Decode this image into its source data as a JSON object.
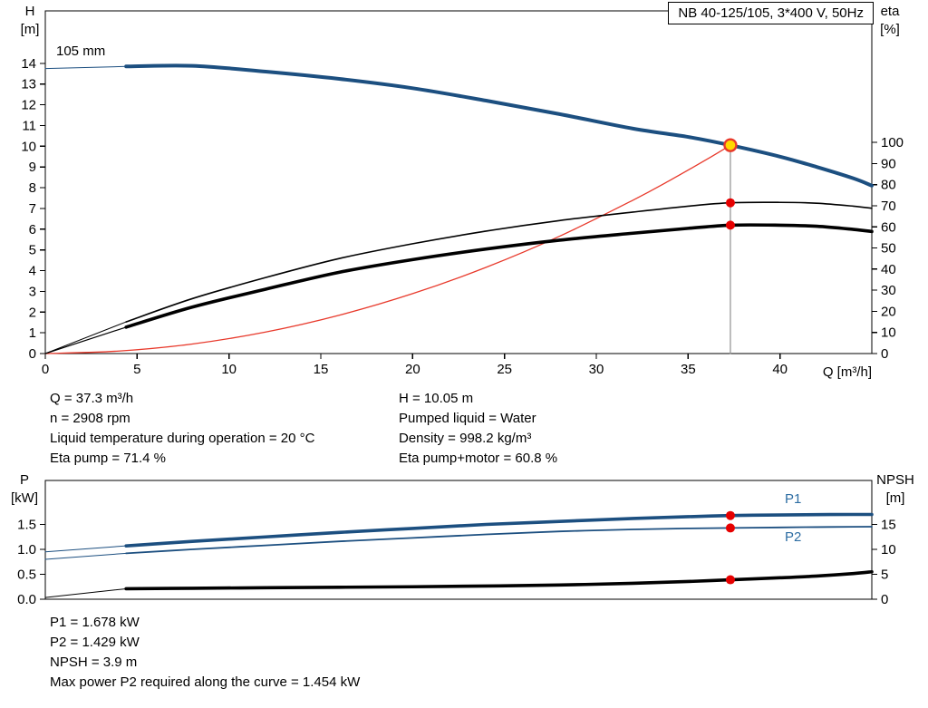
{
  "top_chart": {
    "title_box": "NB 40-125/105, 3*400 V, 50Hz",
    "impeller_label": "105 mm",
    "y_left_title": "H",
    "y_left_unit": "[m]",
    "y_right_title": "eta",
    "y_right_unit": "[%]",
    "x_axis_label": "Q [m³/h]"
  },
  "operating_info": {
    "left": [
      "Q = 37.3 m³/h",
      "n = 2908 rpm",
      "Liquid temperature during operation = 20 °C",
      "Eta pump = 71.4 %"
    ],
    "right": [
      "H = 10.05 m",
      "Pumped liquid = Water",
      "Density = 998.2 kg/m³",
      "Eta pump+motor = 60.8 %"
    ]
  },
  "bottom_chart": {
    "y_left_title": "P",
    "y_left_unit": "[kW]",
    "y_right_title": "NPSH",
    "y_right_unit": "[m]",
    "p1_label": "P1",
    "p2_label": "P2"
  },
  "power_info": [
    "P1 = 1.678 kW",
    "P2 = 1.429 kW",
    "NPSH = 3.9 m",
    "Max power P2 required along the curve = 1.454 kW"
  ],
  "colors": {
    "curve_blue": "#1c4f80",
    "label_blue": "#2d6da3",
    "marker_red": "#e60000",
    "system_red": "#e8392b",
    "duty_yellow": "#ffd800",
    "duty_line_gray": "#8f8f8f"
  },
  "chart_data": [
    {
      "type": "line",
      "title": "NB 40-125/105, 3*400 V, 50Hz",
      "xlabel": "Q [m³/h]",
      "ylabel_left": "H [m]",
      "ylabel_right": "eta [%]",
      "xlim": [
        0,
        45
      ],
      "ylim_left": [
        0,
        16.53
      ],
      "ylim_right": [
        0,
        162.3
      ],
      "grid": false,
      "duty_point": {
        "Q": 37.3,
        "H": 10.05,
        "eta_pump": 71.4,
        "eta_pump_motor": 60.8
      },
      "x_ticks": [
        [
          0,
          "0"
        ],
        [
          5,
          "5"
        ],
        [
          10,
          "10"
        ],
        [
          15,
          "15"
        ],
        [
          20,
          "20"
        ],
        [
          25,
          "25"
        ],
        [
          30,
          "30"
        ],
        [
          35,
          "35"
        ],
        [
          40,
          "40"
        ]
      ],
      "left_ticks": [
        [
          0,
          "0"
        ],
        [
          1,
          "1"
        ],
        [
          2,
          "2"
        ],
        [
          3,
          "3"
        ],
        [
          4,
          "4"
        ],
        [
          5,
          "5"
        ],
        [
          6,
          "6"
        ],
        [
          7,
          "7"
        ],
        [
          8,
          "8"
        ],
        [
          9,
          "9"
        ],
        [
          10,
          "10"
        ],
        [
          11,
          "11"
        ],
        [
          12,
          "12"
        ],
        [
          13,
          "13"
        ],
        [
          14,
          "14"
        ]
      ],
      "right_ticks": [
        [
          0,
          "0"
        ],
        [
          10,
          "10"
        ],
        [
          20,
          "20"
        ],
        [
          30,
          "30"
        ],
        [
          40,
          "40"
        ],
        [
          50,
          "50"
        ],
        [
          60,
          "60"
        ],
        [
          70,
          "70"
        ],
        [
          80,
          "80"
        ],
        [
          90,
          "90"
        ],
        [
          100,
          "100"
        ]
      ],
      "series": [
        {
          "name": "duty-vertical-line",
          "axis": "left",
          "color": "#8f8f8f",
          "width": 1.2,
          "points": [
            [
              37.3,
              0
            ],
            [
              37.3,
              10.05
            ]
          ]
        },
        {
          "name": "system-curve",
          "axis": "left",
          "color": "#e8392b",
          "width": 1.3,
          "points": [
            [
              0,
              0
            ],
            [
              4,
              0.12
            ],
            [
              8,
              0.46
            ],
            [
              12,
              1.04
            ],
            [
              16,
              1.85
            ],
            [
              20,
              2.89
            ],
            [
              24,
              4.16
            ],
            [
              28,
              5.66
            ],
            [
              32,
              7.4
            ],
            [
              34,
              8.35
            ],
            [
              36,
              9.36
            ],
            [
              37.3,
              10.05
            ]
          ]
        },
        {
          "name": "eta-pump-lead",
          "axis": "right",
          "color": "#000000",
          "width": 1,
          "points": [
            [
              0,
              0
            ],
            [
              4.4,
              15
            ]
          ]
        },
        {
          "name": "eta-pump-motor-lead",
          "axis": "right",
          "color": "#000000",
          "width": 1.2,
          "points": [
            [
              0,
              0
            ],
            [
              4.4,
              12.5
            ]
          ]
        },
        {
          "name": "eta-pump-curve",
          "axis": "right",
          "color": "#000000",
          "width": 1.6,
          "points": [
            [
              4.4,
              15
            ],
            [
              8,
              26
            ],
            [
              12,
              36
            ],
            [
              16,
              45
            ],
            [
              20,
              52
            ],
            [
              24,
              58
            ],
            [
              28,
              63
            ],
            [
              32,
              67
            ],
            [
              35,
              69.8
            ],
            [
              37.3,
              71.4
            ],
            [
              40,
              71.6
            ],
            [
              42,
              71.2
            ],
            [
              44,
              69.8
            ],
            [
              45,
              68.8
            ]
          ]
        },
        {
          "name": "eta-pump-motor-curve",
          "axis": "right",
          "color": "#000000",
          "width": 3.6,
          "points": [
            [
              4.4,
              12.5
            ],
            [
              8,
              22
            ],
            [
              12,
              30.5
            ],
            [
              16,
              38.5
            ],
            [
              20,
              44.5
            ],
            [
              24,
              49.5
            ],
            [
              28,
              53.7
            ],
            [
              32,
              57
            ],
            [
              35,
              59.3
            ],
            [
              37.3,
              60.8
            ],
            [
              40,
              60.8
            ],
            [
              42,
              60.3
            ],
            [
              44,
              58.8
            ],
            [
              45,
              57.8
            ]
          ]
        },
        {
          "name": "head-curve-lead",
          "axis": "left",
          "color": "#1c4f80",
          "width": 1,
          "points": [
            [
              0,
              13.75
            ],
            [
              4.4,
              13.85
            ]
          ]
        },
        {
          "name": "head-curve",
          "axis": "left",
          "color": "#1c4f80",
          "width": 4,
          "points": [
            [
              4.4,
              13.85
            ],
            [
              8,
              13.88
            ],
            [
              12,
              13.6
            ],
            [
              16,
              13.25
            ],
            [
              20,
              12.8
            ],
            [
              24,
              12.2
            ],
            [
              28,
              11.55
            ],
            [
              32,
              10.85
            ],
            [
              35,
              10.45
            ],
            [
              37.3,
              10.05
            ],
            [
              40,
              9.5
            ],
            [
              42,
              9.0
            ],
            [
              44,
              8.45
            ],
            [
              45,
              8.1
            ]
          ]
        }
      ],
      "markers": [
        {
          "name": "duty-point",
          "axis": "left",
          "x": 37.3,
          "y": 10.05,
          "r": 6.5,
          "fill": "#ffd800",
          "stroke": "#e8392b",
          "stroke_width": 2.4
        },
        {
          "name": "eta-pump-point",
          "axis": "right",
          "x": 37.3,
          "y": 71.4,
          "r": 5,
          "fill": "#e60000"
        },
        {
          "name": "eta-pump-motor-point",
          "axis": "right",
          "x": 37.3,
          "y": 60.8,
          "r": 5,
          "fill": "#e60000"
        }
      ]
    },
    {
      "type": "line",
      "title": "",
      "xlabel": "",
      "ylabel_left": "P [kW]",
      "ylabel_right": "NPSH [m]",
      "xlim": [
        0,
        45
      ],
      "ylim_left": [
        0,
        2.382
      ],
      "ylim_right": [
        0,
        23.82
      ],
      "grid": false,
      "x_ticks": [],
      "left_ticks": [
        [
          0,
          "0.0"
        ],
        [
          0.5,
          "0.5"
        ],
        [
          1,
          "1.0"
        ],
        [
          1.5,
          "1.5"
        ]
      ],
      "right_ticks": [
        [
          0,
          "0"
        ],
        [
          5,
          "5"
        ],
        [
          10,
          "10"
        ],
        [
          15,
          "15"
        ]
      ],
      "series": [
        {
          "name": "p2-curve-lead",
          "axis": "left",
          "color": "#1c4f80",
          "width": 1,
          "points": [
            [
              0,
              0.8
            ],
            [
              4.4,
              0.92
            ]
          ]
        },
        {
          "name": "p2-curve",
          "axis": "left",
          "color": "#1c4f80",
          "width": 1.8,
          "points": [
            [
              4.4,
              0.92
            ],
            [
              8,
              1.0
            ],
            [
              12,
              1.08
            ],
            [
              16,
              1.16
            ],
            [
              20,
              1.23
            ],
            [
              24,
              1.3
            ],
            [
              28,
              1.36
            ],
            [
              32,
              1.4
            ],
            [
              35,
              1.42
            ],
            [
              37.3,
              1.429
            ],
            [
              40,
              1.44
            ],
            [
              42,
              1.447
            ],
            [
              44,
              1.452
            ],
            [
              45,
              1.454
            ]
          ]
        },
        {
          "name": "p1-curve-lead",
          "axis": "left",
          "color": "#1c4f80",
          "width": 1,
          "points": [
            [
              0,
              0.95
            ],
            [
              4.4,
              1.07
            ]
          ]
        },
        {
          "name": "p1-curve",
          "axis": "left",
          "color": "#1c4f80",
          "width": 3.6,
          "points": [
            [
              4.4,
              1.07
            ],
            [
              8,
              1.16
            ],
            [
              12,
              1.25
            ],
            [
              16,
              1.34
            ],
            [
              20,
              1.42
            ],
            [
              24,
              1.5
            ],
            [
              28,
              1.56
            ],
            [
              32,
              1.62
            ],
            [
              35,
              1.655
            ],
            [
              37.3,
              1.678
            ],
            [
              40,
              1.69
            ],
            [
              42,
              1.697
            ],
            [
              44,
              1.7
            ],
            [
              45,
              1.7
            ]
          ]
        },
        {
          "name": "npsh-curve-lead",
          "axis": "right",
          "color": "#000000",
          "width": 1,
          "points": [
            [
              0,
              0.35
            ],
            [
              4.4,
              2.1
            ]
          ]
        },
        {
          "name": "npsh-curve",
          "axis": "right",
          "color": "#000000",
          "width": 3.6,
          "points": [
            [
              4.4,
              2.1
            ],
            [
              8,
              2.2
            ],
            [
              12,
              2.3
            ],
            [
              16,
              2.4
            ],
            [
              20,
              2.5
            ],
            [
              24,
              2.65
            ],
            [
              28,
              2.85
            ],
            [
              32,
              3.2
            ],
            [
              35,
              3.55
            ],
            [
              37.3,
              3.9
            ],
            [
              40,
              4.3
            ],
            [
              42,
              4.65
            ],
            [
              44,
              5.15
            ],
            [
              45,
              5.5
            ]
          ]
        }
      ],
      "markers": [
        {
          "name": "p1-point",
          "axis": "left",
          "x": 37.3,
          "y": 1.678,
          "r": 5,
          "fill": "#e60000"
        },
        {
          "name": "p2-point",
          "axis": "left",
          "x": 37.3,
          "y": 1.429,
          "r": 5,
          "fill": "#e60000"
        },
        {
          "name": "npsh-point",
          "axis": "right",
          "x": 37.3,
          "y": 3.9,
          "r": 5,
          "fill": "#e60000"
        }
      ],
      "legend": [
        "P1",
        "P2"
      ]
    }
  ]
}
